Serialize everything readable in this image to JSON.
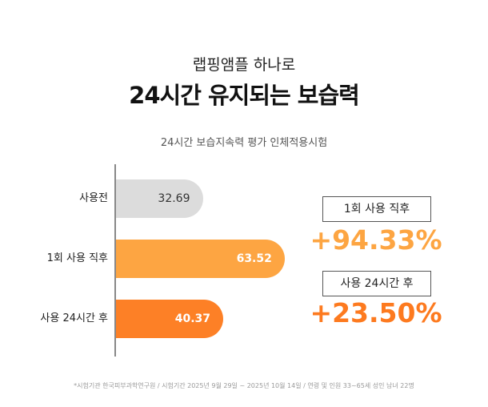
{
  "header": {
    "subtitle": "랩핑앰플 하나로",
    "title": "24시간 유지되는 보습력"
  },
  "chart_data": {
    "type": "bar",
    "orientation": "horizontal",
    "title": "24시간 보습지속력 평가 인체적용시험",
    "categories": [
      "사용전",
      "1회 사용 직후",
      "사용 24시간 후"
    ],
    "values": [
      32.69,
      63.52,
      40.37
    ],
    "labels": [
      "32.69",
      "63.52",
      "40.37"
    ],
    "colors": [
      "#dcdcdc",
      "#fda542",
      "#fd8026"
    ],
    "label_colors": [
      "#333333",
      "#ffffff",
      "#ffffff"
    ],
    "xlim": [
      0,
      70
    ]
  },
  "callouts": [
    {
      "label": "1회 사용 직후",
      "value": "+94.33%",
      "color": "#fda542"
    },
    {
      "label": "사용 24시간 후",
      "value": "+23.50%",
      "color": "#fd7a1f"
    }
  ],
  "footnote": "*시험기관 한국피부과학연구원 / 시험기간 2025년 9월 29일 ~ 2025년 10월 14일 / 연령 및 인원 33~65세 성인 남녀 22명"
}
